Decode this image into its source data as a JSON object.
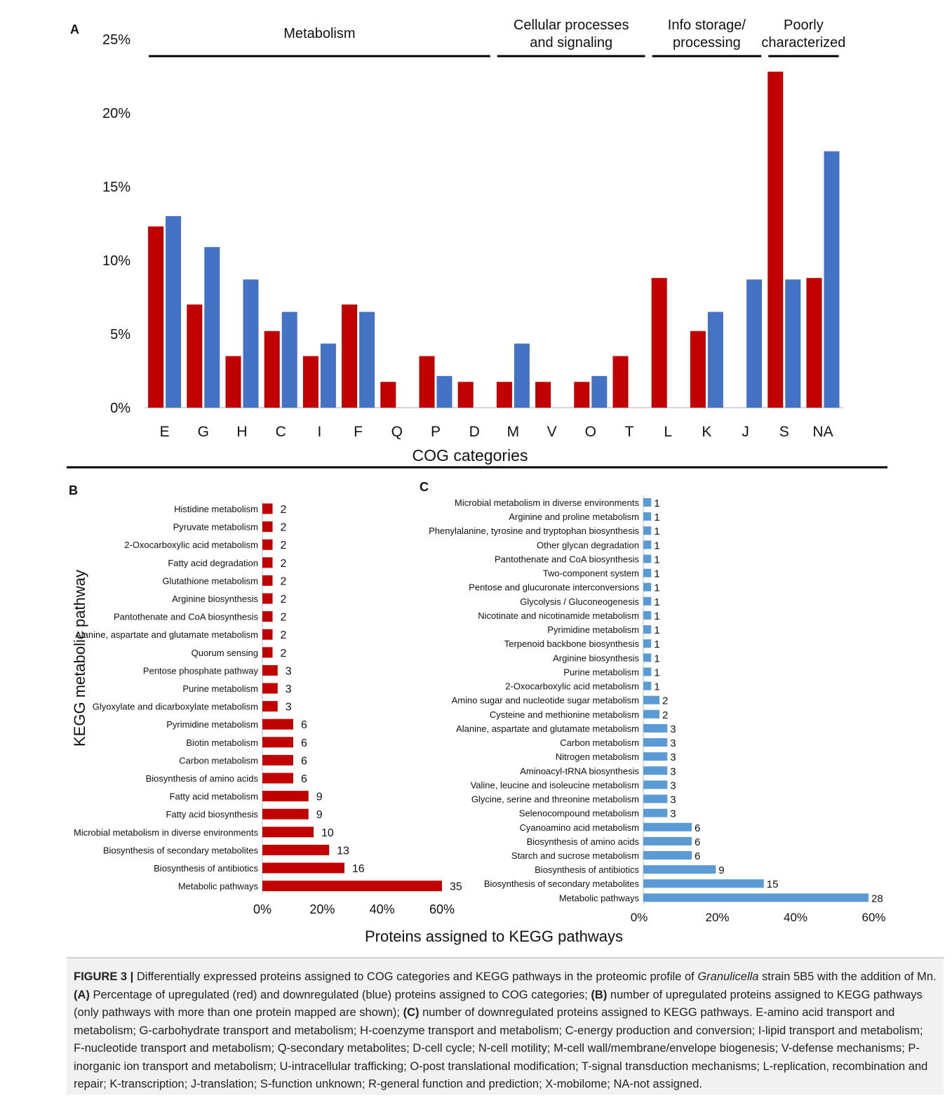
{
  "colors": {
    "up": "#c00000",
    "down": "#4472c4",
    "down_light": "#5b9bd5"
  },
  "chart_data": [
    {
      "type": "bar",
      "panel": "A",
      "xlabel": "COG categories",
      "categories": [
        "E",
        "G",
        "H",
        "C",
        "I",
        "F",
        "Q",
        "P",
        "D",
        "M",
        "V",
        "O",
        "T",
        "L",
        "K",
        "J",
        "S",
        "NA"
      ],
      "series": [
        {
          "values": [
            12.3,
            7.0,
            3.5,
            5.2,
            3.5,
            7.0,
            1.75,
            3.5,
            1.75,
            1.75,
            1.75,
            1.75,
            3.5,
            8.8,
            5.2,
            0,
            22.8,
            8.8
          ],
          "color": "#c00000"
        },
        {
          "values": [
            13.0,
            10.9,
            8.7,
            6.5,
            4.35,
            6.5,
            0,
            2.15,
            0,
            4.35,
            0,
            2.15,
            0,
            0,
            6.5,
            8.7,
            8.7,
            17.4
          ],
          "color": "#4472c4"
        }
      ],
      "yticks": [
        "0%",
        "5%",
        "10%",
        "15%",
        "20%",
        "25%"
      ],
      "ylim": [
        0,
        25
      ],
      "groups": [
        {
          "label_lines": [
            "Metabolism"
          ],
          "from": "E",
          "to": "D"
        },
        {
          "label_lines": [
            "Cellular processes",
            "and signaling"
          ],
          "from": "M",
          "to": "T"
        },
        {
          "label_lines": [
            "Info storage/",
            "processing"
          ],
          "from": "L",
          "to": "J"
        },
        {
          "label_lines": [
            "Poorly",
            "characterized"
          ],
          "from": "S",
          "to": "NA"
        }
      ]
    },
    {
      "type": "bar",
      "orientation": "horizontal",
      "panel": "B",
      "ylabel": "KEGG metabolic pathway",
      "xticks": [
        "0%",
        "20%",
        "40%",
        "60%"
      ],
      "xlim": [
        0,
        60
      ],
      "categories": [
        "Histidine metabolism",
        "Pyruvate metabolism",
        "2-Oxocarboxylic acid metabolism",
        "Fatty acid degradation",
        "Glutathione metabolism",
        "Arginine biosynthesis",
        "Pantothenate and CoA biosynthesis",
        "Alanine, aspartate and glutamate metabolism",
        "Quorum sensing",
        "Pentose phosphate pathway",
        "Purine metabolism",
        "Glyoxylate and dicarboxylate metabolism",
        "Pyrimidine metabolism",
        "Biotin metabolism",
        "Carbon metabolism",
        "Biosynthesis of amino acids",
        "Fatty acid metabolism",
        "Fatty acid biosynthesis",
        "Microbial metabolism in diverse environments",
        "Biosynthesis of secondary metabolites",
        "Biosynthesis of antibiotics",
        "Metabolic pathways"
      ],
      "counts": [
        2,
        2,
        2,
        2,
        2,
        2,
        2,
        2,
        2,
        3,
        3,
        3,
        6,
        6,
        6,
        6,
        9,
        9,
        10,
        13,
        16,
        35
      ],
      "values_pct": [
        3.4,
        3.4,
        3.4,
        3.4,
        3.4,
        3.4,
        3.4,
        3.4,
        3.4,
        5.1,
        5.1,
        5.1,
        10.3,
        10.3,
        10.3,
        10.3,
        15.4,
        15.4,
        17.1,
        22.3,
        27.4,
        60.0
      ],
      "color": "#c00000"
    },
    {
      "type": "bar",
      "orientation": "horizontal",
      "panel": "C",
      "xticks": [
        "0%",
        "20%",
        "40%",
        "60%"
      ],
      "xlim": [
        0,
        60
      ],
      "categories": [
        "Microbial metabolism in diverse environments",
        "Arginine and proline metabolism",
        "Phenylalanine, tyrosine and tryptophan biosynthesis",
        "Other glycan degradation",
        "Pantothenate and CoA biosynthesis",
        "Two-component system",
        "Pentose and glucuronate interconversions",
        "Glycolysis / Gluconeogenesis",
        "Nicotinate and nicotinamide metabolism",
        "Pyrimidine metabolism",
        "Terpenoid backbone biosynthesis",
        "Arginine biosynthesis",
        "Purine metabolism",
        "2-Oxocarboxylic acid metabolism",
        "Amino sugar and nucleotide sugar metabolism",
        "Cysteine and methionine metabolism",
        "Alanine, aspartate and glutamate metabolism",
        "Carbon metabolism",
        "Nitrogen metabolism",
        "Aminoacyl-tRNA biosynthesis",
        "Valine, leucine and isoleucine metabolism",
        "Glycine, serine and threonine metabolism",
        "Selenocompound metabolism",
        "Cyanoamino acid metabolism",
        "Biosynthesis of amino acids",
        "Starch and sucrose metabolism",
        "Biosynthesis of antibiotics",
        "Biosynthesis of secondary metabolites",
        "Metabolic pathways"
      ],
      "counts": [
        1,
        1,
        1,
        1,
        1,
        1,
        1,
        1,
        1,
        1,
        1,
        1,
        1,
        1,
        2,
        2,
        3,
        3,
        3,
        3,
        3,
        3,
        3,
        6,
        6,
        6,
        9,
        15,
        28
      ],
      "values_pct": [
        2.1,
        2.1,
        2.1,
        2.1,
        2.1,
        2.1,
        2.1,
        2.1,
        2.1,
        2.1,
        2.1,
        2.1,
        2.1,
        2.1,
        4.3,
        4.3,
        6.4,
        6.4,
        6.4,
        6.4,
        6.4,
        6.4,
        6.4,
        12.9,
        12.9,
        12.9,
        19.3,
        32.1,
        60.0
      ],
      "color": "#5b9bd5"
    }
  ],
  "shared_xlabel": "Proteins assigned to KEGG pathways",
  "caption": {
    "label": "FIGURE 3 |",
    "text_1": " Differentially expressed proteins assigned to COG categories and KEGG pathways in the proteomic profile of ",
    "italic": "Granulicella",
    "text_2": " strain 5B5 with the addition of Mn. ",
    "ref_a": "(A)",
    "text_a": " Percentage of upregulated (red) and downregulated (blue) proteins assigned to COG categories; ",
    "ref_b": "(B)",
    "text_b": " number of upregulated proteins assigned to KEGG pathways (only pathways with more than one protein mapped are shown); ",
    "ref_c": "(C)",
    "text_c": " number of downregulated proteins assigned to KEGG pathways. E-amino acid transport and metabolism; G-carbohydrate transport and metabolism; H-coenzyme transport and metabolism; C-energy production and conversion; I-lipid transport and metabolism; F-nucleotide transport and metabolism; Q-secondary metabolites; D-cell cycle; N-cell motility; M-cell wall/membrane/envelope biogenesis; V-defense mechanisms; P-inorganic ion transport and metabolism; U-intracellular trafficking; O-post translational modification; T-signal transduction mechanisms; L-replication, recombination and repair; K-transcription; J-translation; S-function unknown; R-general function and prediction; X-mobilome; NA-not assigned."
  }
}
